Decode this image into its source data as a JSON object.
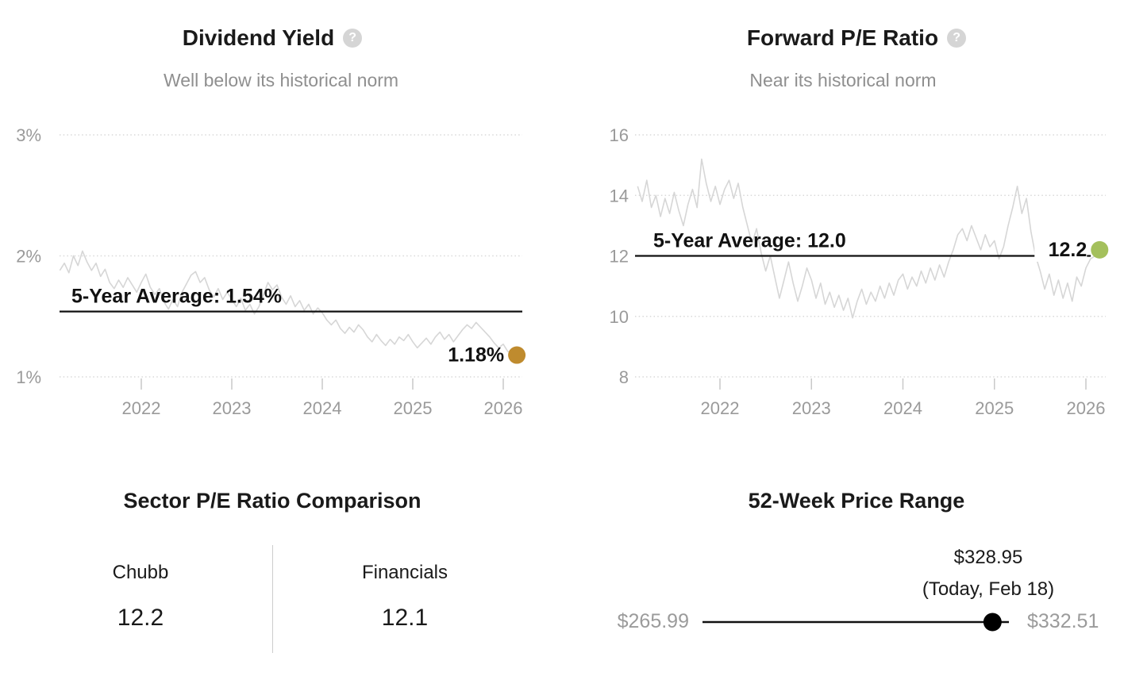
{
  "icons": {
    "help_glyph": "?"
  },
  "colors": {
    "dividend_dot": "#bf8b2e",
    "pe_dot": "#a4c05c",
    "series_line": "#d6d6d6",
    "average_line": "#111111",
    "axis_text": "#9a9a9a",
    "subtitle_text": "#8f8f8f"
  },
  "chart_data": [
    {
      "id": "dividend_yield",
      "type": "line",
      "title": "Dividend Yield",
      "subtitle": "Well below its historical norm",
      "y_ticks": [
        {
          "label": "3%",
          "value": 3
        },
        {
          "label": "2%",
          "value": 2
        },
        {
          "label": "1%",
          "value": 1
        }
      ],
      "x_ticks": [
        {
          "label": "2022",
          "year": 2022
        },
        {
          "label": "2023",
          "year": 2023
        },
        {
          "label": "2024",
          "year": 2024
        },
        {
          "label": "2025",
          "year": 2025
        },
        {
          "label": "2026",
          "year": 2026
        }
      ],
      "ylim": [
        1,
        3
      ],
      "grid": "dotted-horizontal",
      "average": {
        "value": 1.54,
        "label": "5-Year Average: 1.54%"
      },
      "end": {
        "value": 1.18,
        "label": "1.18%",
        "dot_color": "#bf8b2e"
      },
      "series": {
        "name": "Dividend Yield (%)",
        "x_start": 2021.1,
        "x_step": 0.05,
        "values": [
          1.88,
          1.94,
          1.86,
          2.0,
          1.92,
          2.04,
          1.95,
          1.88,
          1.94,
          1.83,
          1.89,
          1.78,
          1.73,
          1.8,
          1.74,
          1.82,
          1.76,
          1.7,
          1.78,
          1.85,
          1.74,
          1.68,
          1.73,
          1.62,
          1.56,
          1.64,
          1.58,
          1.7,
          1.77,
          1.84,
          1.87,
          1.78,
          1.82,
          1.72,
          1.66,
          1.73,
          1.64,
          1.7,
          1.64,
          1.58,
          1.65,
          1.55,
          1.6,
          1.52,
          1.58,
          1.68,
          1.78,
          1.72,
          1.76,
          1.66,
          1.6,
          1.67,
          1.58,
          1.63,
          1.55,
          1.6,
          1.52,
          1.57,
          1.53,
          1.47,
          1.43,
          1.47,
          1.4,
          1.36,
          1.41,
          1.37,
          1.43,
          1.39,
          1.33,
          1.29,
          1.35,
          1.3,
          1.26,
          1.31,
          1.27,
          1.33,
          1.3,
          1.35,
          1.29,
          1.24,
          1.28,
          1.32,
          1.27,
          1.33,
          1.37,
          1.31,
          1.35,
          1.29,
          1.34,
          1.39,
          1.43,
          1.4,
          1.45,
          1.41,
          1.37,
          1.33,
          1.28,
          1.24,
          1.27,
          1.21,
          1.2,
          1.18
        ]
      }
    },
    {
      "id": "forward_pe",
      "type": "line",
      "title": "Forward P/E Ratio",
      "subtitle": "Near its historical norm",
      "y_ticks": [
        {
          "label": "16",
          "value": 16
        },
        {
          "label": "14",
          "value": 14
        },
        {
          "label": "12",
          "value": 12
        },
        {
          "label": "10",
          "value": 10
        },
        {
          "label": "8",
          "value": 8
        }
      ],
      "x_ticks": [
        {
          "label": "2022",
          "year": 2022
        },
        {
          "label": "2023",
          "year": 2023
        },
        {
          "label": "2024",
          "year": 2024
        },
        {
          "label": "2025",
          "year": 2025
        },
        {
          "label": "2026",
          "year": 2026
        }
      ],
      "ylim": [
        8,
        16
      ],
      "grid": "dotted-horizontal",
      "average": {
        "value": 12.0,
        "label": "5-Year Average: 12.0"
      },
      "end": {
        "value": 12.2,
        "label": "12.2",
        "dot_color": "#a4c05c"
      },
      "series": {
        "name": "Forward P/E",
        "x_start": 2021.1,
        "x_step": 0.05,
        "values": [
          14.3,
          13.8,
          14.5,
          13.6,
          14.0,
          13.3,
          13.9,
          13.4,
          14.1,
          13.5,
          13.0,
          13.7,
          14.2,
          13.6,
          15.2,
          14.4,
          13.8,
          14.3,
          13.7,
          14.2,
          14.5,
          13.9,
          14.4,
          13.6,
          13.0,
          12.4,
          12.9,
          12.1,
          11.5,
          12.0,
          11.3,
          10.6,
          11.2,
          11.8,
          11.1,
          10.5,
          11.0,
          11.6,
          11.2,
          10.6,
          11.1,
          10.4,
          10.8,
          10.3,
          10.7,
          10.2,
          10.6,
          9.95,
          10.5,
          10.9,
          10.4,
          10.8,
          10.5,
          11.0,
          10.6,
          11.1,
          10.7,
          11.2,
          11.4,
          10.9,
          11.3,
          11.0,
          11.5,
          11.1,
          11.6,
          11.2,
          11.7,
          11.3,
          11.8,
          12.2,
          12.7,
          12.9,
          12.5,
          13.0,
          12.6,
          12.2,
          12.7,
          12.3,
          12.5,
          11.9,
          12.3,
          13.0,
          13.6,
          14.3,
          13.4,
          13.9,
          12.8,
          12.0,
          11.5,
          10.9,
          11.4,
          10.7,
          11.2,
          10.6,
          11.1,
          10.5,
          11.3,
          11.0,
          11.6,
          11.9,
          12.0,
          12.2
        ]
      }
    },
    {
      "id": "sector_pe_comparison",
      "type": "table",
      "title": "Sector P/E Ratio Comparison",
      "columns": [
        {
          "label": "Chubb",
          "value": "12.2"
        },
        {
          "label": "Financials",
          "value": "12.1"
        }
      ]
    },
    {
      "id": "price_range_52w",
      "type": "range",
      "title": "52-Week Price Range",
      "low": 265.99,
      "high": 332.51,
      "current": 328.95,
      "current_date_label": "(Today, Feb 18)",
      "labels": {
        "low": "$265.99",
        "high": "$332.51",
        "current": "$328.95"
      }
    }
  ]
}
